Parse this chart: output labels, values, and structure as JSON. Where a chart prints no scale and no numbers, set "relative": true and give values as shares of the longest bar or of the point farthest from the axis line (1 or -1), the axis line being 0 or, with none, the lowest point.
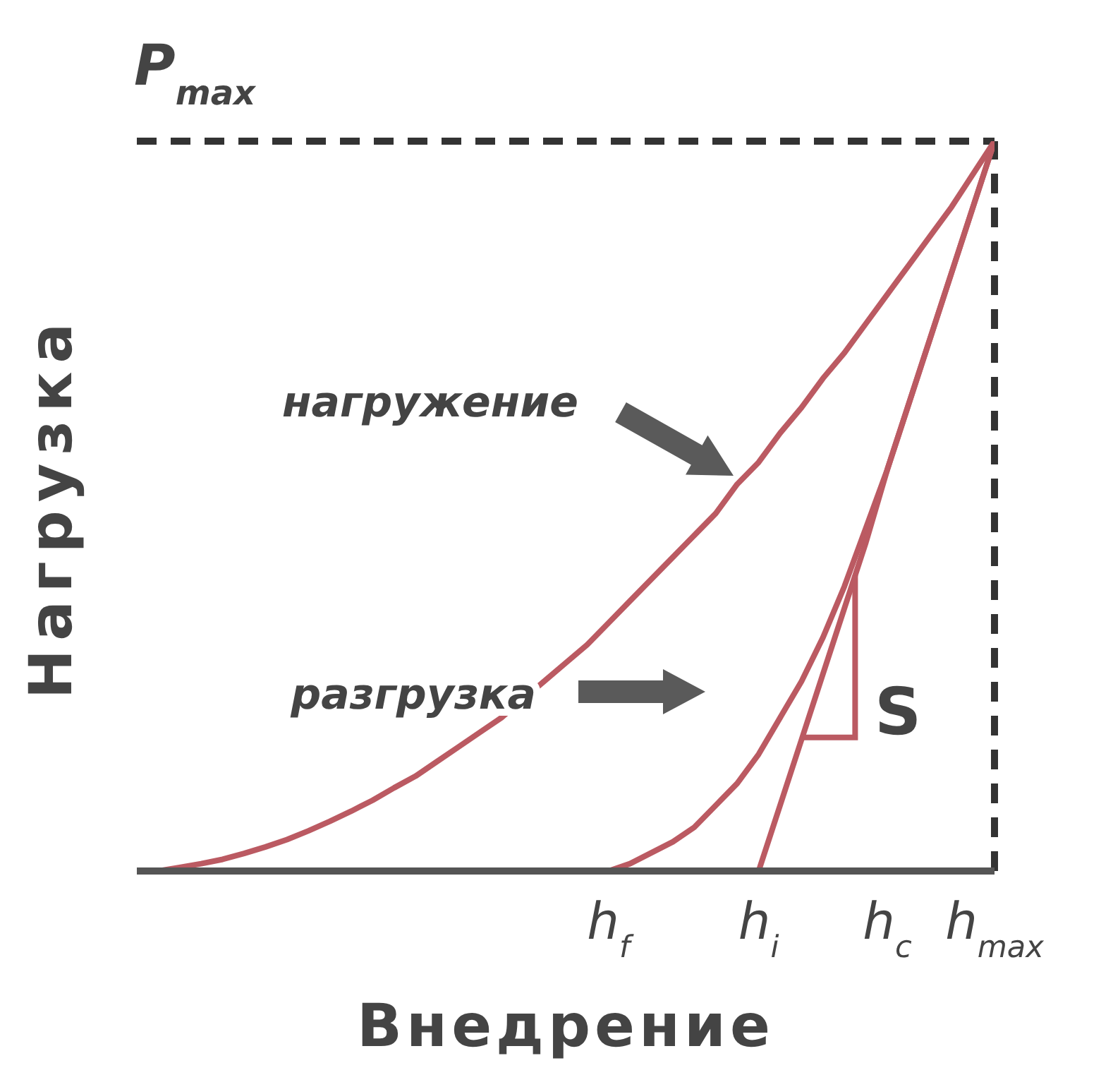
{
  "chart_data": {
    "type": "line",
    "relative": true,
    "xlabel": "Внедрение",
    "ylabel": "Нагрузка",
    "categories": [
      null,
      null,
      null,
      null,
      null,
      null,
      null,
      null,
      null,
      null,
      null,
      null,
      null,
      null,
      null,
      null,
      null,
      null,
      null,
      null,
      null,
      null,
      "h$_{f}$",
      null,
      null,
      null,
      null,
      null,
      null,
      "h$_{i}$",
      null,
      null,
      null,
      null,
      null,
      "h$_{c}$",
      null,
      null,
      null,
      null,
      "h$_{max}$"
    ],
    "series": [
      {
        "color": "#bb5a62",
        "values": [
          0,
          0,
          0.005,
          0.01,
          0.016,
          0.024,
          0.033,
          0.043,
          0.055,
          0.068,
          0.082,
          0.097,
          0.114,
          0.13,
          0.15,
          0.17,
          0.19,
          0.21,
          0.235,
          0.26,
          0.285,
          0.31,
          0.34,
          0.37,
          0.4,
          0.43,
          0.46,
          0.49,
          0.53,
          0.56,
          0.6,
          0.635,
          0.675,
          0.71,
          0.75,
          0.79,
          0.83,
          0.87,
          0.91,
          0.955,
          1
        ]
      },
      {
        "color": "#bb5a62",
        "values": [
          null,
          null,
          null,
          null,
          null,
          null,
          null,
          null,
          null,
          null,
          null,
          null,
          null,
          null,
          null,
          null,
          null,
          null,
          null,
          null,
          null,
          null,
          0,
          0.01,
          0.025,
          0.04,
          0.06,
          0.09,
          0.12,
          0.16,
          0.21,
          0.26,
          0.32,
          0.39,
          0.47,
          0.55,
          0.64,
          0.73,
          0.82,
          0.91,
          1
        ]
      },
      {
        "color": "#bb5a62",
        "values": [
          null,
          null,
          null,
          null,
          null,
          null,
          null,
          null,
          null,
          null,
          null,
          null,
          null,
          null,
          null,
          null,
          null,
          null,
          null,
          null,
          null,
          null,
          null,
          null,
          null,
          null,
          null,
          null,
          null,
          0,
          0.09,
          0.18,
          0.27,
          0.36,
          0.45,
          0.55,
          0.64,
          0.73,
          0.82,
          0.91,
          1
        ]
      }
    ],
    "ref_lines": [
      {
        "axis": "y",
        "value": 1,
        "label": "P$_{max}$",
        "color": "#333333",
        "line_style": "dashed"
      },
      {
        "axis": "x",
        "value": "h$_{max}$",
        "color": "#333333",
        "line_style": "dashed"
      }
    ],
    "annotations": [
      "нагружение",
      "разгрузка",
      "S"
    ],
    "marker": "none",
    "line_style": "solid"
  }
}
